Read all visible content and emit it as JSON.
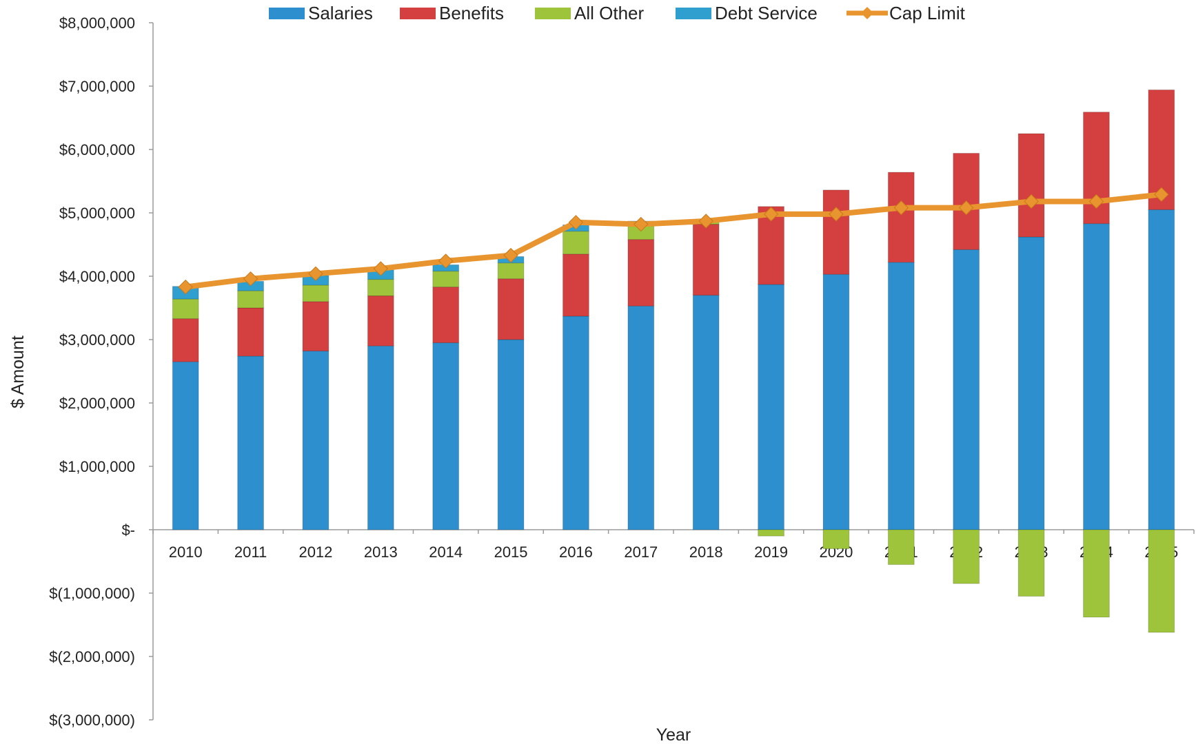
{
  "chart_data": {
    "type": "bar",
    "stacked": true,
    "title": "",
    "xlabel": "Year",
    "ylabel": "$ Amount",
    "ylim": [
      -3000000,
      8000000
    ],
    "y_ticks": [
      8000000,
      7000000,
      6000000,
      5000000,
      4000000,
      3000000,
      2000000,
      1000000,
      0,
      -1000000,
      -2000000,
      -3000000
    ],
    "y_tick_labels": [
      "$8,000,000",
      "$7,000,000",
      "$6,000,000",
      "$5,000,000",
      "$4,000,000",
      "$3,000,000",
      "$2,000,000",
      "$1,000,000",
      "$-",
      "$(1,000,000)",
      "$(2,000,000)",
      "$(3,000,000)"
    ],
    "categories": [
      "2010",
      "2011",
      "2012",
      "2013",
      "2014",
      "2015",
      "2016",
      "2017",
      "2018",
      "2019",
      "2020",
      "2021",
      "2022",
      "2023",
      "2024",
      "2025"
    ],
    "legend_position": "top",
    "grid": false,
    "series": [
      {
        "name": "Salaries",
        "type": "bar",
        "color": "#2e8fce",
        "values": [
          2650000,
          2740000,
          2820000,
          2900000,
          2950000,
          3000000,
          3370000,
          3530000,
          3700000,
          3870000,
          4030000,
          4220000,
          4420000,
          4620000,
          4830000,
          5050000
        ]
      },
      {
        "name": "Benefits",
        "type": "bar",
        "color": "#d43f3f",
        "values": [
          680000,
          760000,
          780000,
          790000,
          880000,
          960000,
          980000,
          1050000,
          1120000,
          1230000,
          1330000,
          1420000,
          1520000,
          1630000,
          1760000,
          1890000
        ]
      },
      {
        "name": "All Other",
        "type": "bar",
        "color": "#9dc43b",
        "values": [
          310000,
          270000,
          260000,
          260000,
          250000,
          250000,
          360000,
          240000,
          50000,
          -100000,
          -300000,
          -550000,
          -850000,
          -1050000,
          -1380000,
          -1620000
        ]
      },
      {
        "name": "Debt Service",
        "type": "bar",
        "color": "#2e9fcf",
        "values": [
          200000,
          150000,
          150000,
          150000,
          100000,
          100000,
          100000,
          50000,
          0,
          0,
          0,
          0,
          0,
          0,
          0,
          0
        ]
      },
      {
        "name": "Cap Limit",
        "type": "line",
        "color": "#e8952f",
        "values": [
          3830000,
          3960000,
          4040000,
          4120000,
          4240000,
          4330000,
          4850000,
          4820000,
          4870000,
          4980000,
          4980000,
          5080000,
          5080000,
          5180000,
          5180000,
          5290000
        ]
      }
    ]
  }
}
